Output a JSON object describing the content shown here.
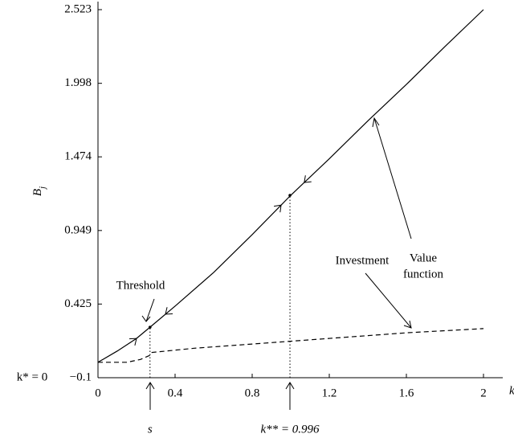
{
  "chart_data": {
    "type": "line",
    "ylabel": "B",
    "ylabel_sub": "j",
    "xlabel": "k",
    "xlim": [
      0,
      2.1
    ],
    "ylim": [
      -0.1,
      2.523
    ],
    "xticks": [
      0,
      0.4,
      0.8,
      1.2,
      1.6,
      2
    ],
    "yticks": [
      {
        "value": -0.1,
        "label": "−0.1"
      },
      0.425,
      0.949,
      1.474,
      1.998,
      2.523
    ],
    "series": [
      {
        "name": "Value function",
        "color": "#000000",
        "dash": "solid",
        "x": [
          0,
          0.1,
          0.2,
          0.27,
          0.4,
          0.6,
          0.8,
          1.0,
          1.2,
          1.4,
          1.6,
          1.8,
          2.0
        ],
        "values": [
          0.01,
          0.09,
          0.18,
          0.26,
          0.41,
          0.65,
          0.92,
          1.2,
          1.46,
          1.73,
          1.99,
          2.26,
          2.523
        ]
      },
      {
        "name": "Investment",
        "color": "#000000",
        "dash": "dashed",
        "x": [
          0,
          0.15,
          0.22,
          0.27,
          0.28,
          0.5,
          0.8,
          1.0,
          1.4,
          1.6,
          2.0
        ],
        "values": [
          0.01,
          0.01,
          0.03,
          0.06,
          0.08,
          0.11,
          0.14,
          0.16,
          0.2,
          0.22,
          0.25
        ]
      }
    ],
    "markers": [
      {
        "label": "s",
        "x": 0.27,
        "y": 0.26
      },
      {
        "label": "k** = 0.996",
        "x": 0.996,
        "y": 1.2
      }
    ],
    "annotations": [
      "Threshold",
      "Value",
      "function",
      "Investment",
      "k* = 0"
    ]
  }
}
